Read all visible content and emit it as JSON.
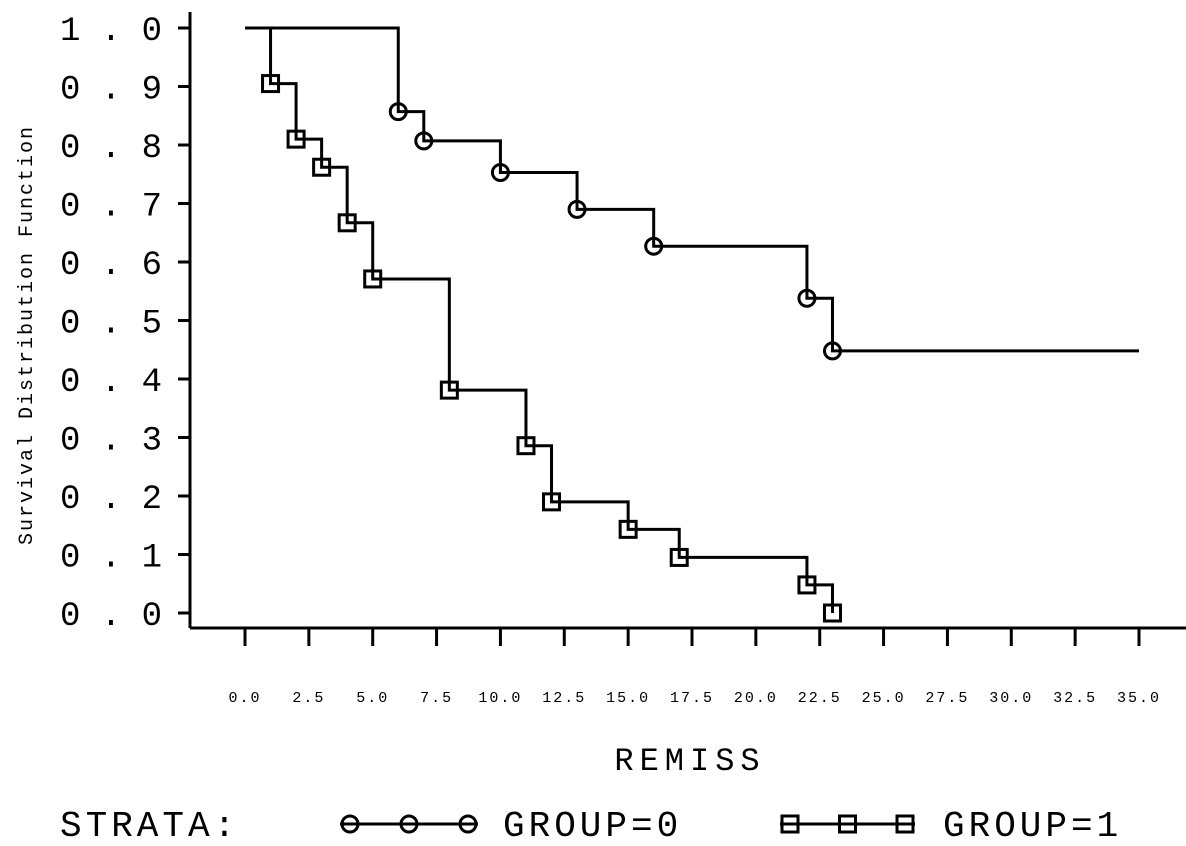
{
  "chart_data": {
    "type": "line",
    "step": true,
    "xlabel": "REMISS",
    "ylabel": "Survival Distribution Function",
    "xlim": [
      0,
      35
    ],
    "ylim": [
      0,
      1
    ],
    "x_ticks": [
      "0.0",
      "2.5",
      "5.0",
      "7.5",
      "10.0",
      "12.5",
      "15.0",
      "17.5",
      "20.0",
      "22.5",
      "25.0",
      "27.5",
      "30.0",
      "32.5",
      "35.0"
    ],
    "y_ticks": [
      "0.0",
      "0.1",
      "0.2",
      "0.3",
      "0.4",
      "0.5",
      "0.6",
      "0.7",
      "0.8",
      "0.9",
      "1.0"
    ],
    "grid": false,
    "legend": {
      "title": "STRATA:",
      "position": "bottom"
    },
    "series": [
      {
        "name": "GROUP=0",
        "marker": "circle",
        "end_x": 35,
        "steps": [
          {
            "x": 0,
            "y": 1.0
          },
          {
            "x": 6,
            "y": 0.857
          },
          {
            "x": 7,
            "y": 0.807
          },
          {
            "x": 10,
            "y": 0.753
          },
          {
            "x": 13,
            "y": 0.69
          },
          {
            "x": 16,
            "y": 0.627
          },
          {
            "x": 22,
            "y": 0.538
          },
          {
            "x": 23,
            "y": 0.448
          }
        ]
      },
      {
        "name": "GROUP=1",
        "marker": "square",
        "end_x": 23,
        "steps": [
          {
            "x": 0,
            "y": 1.0
          },
          {
            "x": 1,
            "y": 0.905
          },
          {
            "x": 2,
            "y": 0.81
          },
          {
            "x": 3,
            "y": 0.762
          },
          {
            "x": 4,
            "y": 0.667
          },
          {
            "x": 5,
            "y": 0.571
          },
          {
            "x": 8,
            "y": 0.381
          },
          {
            "x": 11,
            "y": 0.286
          },
          {
            "x": 12,
            "y": 0.19
          },
          {
            "x": 15,
            "y": 0.143
          },
          {
            "x": 17,
            "y": 0.095
          },
          {
            "x": 22,
            "y": 0.048
          },
          {
            "x": 23,
            "y": 0.0
          }
        ]
      }
    ]
  }
}
